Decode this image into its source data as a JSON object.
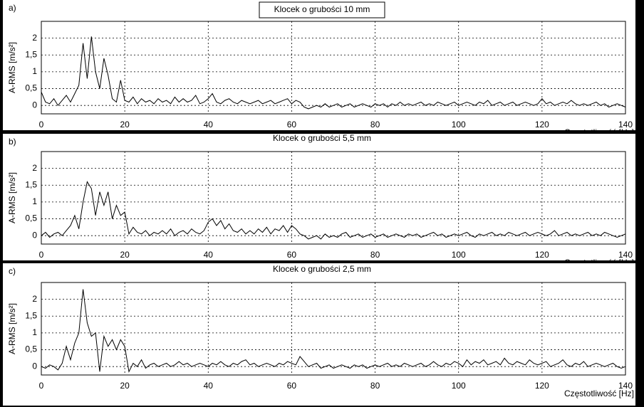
{
  "chart_data": [
    {
      "type": "line",
      "label": "a)",
      "title": "Klocek o grubości 10 mm",
      "xlabel": "Częstotliwość [Hz]",
      "ylabel": "A-RMS [m/s²]",
      "xlim": [
        0,
        140
      ],
      "ylim": [
        -0.25,
        2.5
      ],
      "xticks": [
        0,
        20,
        40,
        60,
        80,
        100,
        120,
        140
      ],
      "yticks": [
        0,
        {
          "value": 0.5,
          "label": "0,5"
        },
        1,
        {
          "value": 1.5,
          "label": "1,5"
        },
        2
      ],
      "grid": true,
      "color": "#000000",
      "x": [
        0,
        1,
        2,
        3,
        4,
        5,
        6,
        7,
        8,
        9,
        10,
        11,
        12,
        13,
        14,
        15,
        16,
        17,
        18,
        19,
        20,
        21,
        22,
        23,
        24,
        25,
        26,
        27,
        28,
        29,
        30,
        31,
        32,
        33,
        34,
        35,
        36,
        37,
        38,
        39,
        40,
        41,
        42,
        43,
        44,
        45,
        46,
        47,
        48,
        49,
        50,
        51,
        52,
        53,
        54,
        55,
        56,
        57,
        58,
        59,
        60,
        61,
        62,
        63,
        64,
        65,
        66,
        67,
        68,
        69,
        70,
        71,
        72,
        73,
        74,
        75,
        76,
        77,
        78,
        79,
        80,
        81,
        82,
        83,
        84,
        85,
        86,
        87,
        88,
        89,
        90,
        91,
        92,
        93,
        94,
        95,
        96,
        97,
        98,
        99,
        100,
        101,
        102,
        103,
        104,
        105,
        106,
        107,
        108,
        109,
        110,
        111,
        112,
        113,
        114,
        115,
        116,
        117,
        118,
        119,
        120,
        121,
        122,
        123,
        124,
        125,
        126,
        127,
        128,
        129,
        130,
        131,
        132,
        133,
        134,
        135,
        136,
        137,
        138,
        139,
        140
      ],
      "values": [
        0.4,
        0.1,
        0.05,
        0.2,
        0.0,
        0.15,
        0.3,
        0.1,
        0.35,
        0.6,
        1.85,
        0.8,
        2.05,
        1.0,
        0.5,
        1.4,
        0.9,
        0.2,
        0.1,
        0.75,
        0.15,
        0.1,
        0.25,
        0.05,
        0.2,
        0.1,
        0.15,
        0.05,
        0.2,
        0.1,
        0.15,
        0.05,
        0.25,
        0.1,
        0.2,
        0.1,
        0.15,
        0.3,
        0.05,
        0.1,
        0.2,
        0.35,
        0.1,
        0.05,
        0.15,
        0.2,
        0.1,
        0.05,
        0.15,
        0.1,
        0.05,
        0.1,
        0.15,
        0.05,
        0.1,
        0.15,
        0.05,
        0.1,
        0.15,
        0.2,
        0.05,
        0.15,
        0.1,
        -0.05,
        -0.1,
        -0.05,
        0.0,
        -0.05,
        0.05,
        -0.05,
        0.0,
        0.05,
        -0.05,
        0.0,
        0.05,
        -0.05,
        0.0,
        0.05,
        0.0,
        -0.05,
        0.05,
        0.0,
        0.05,
        -0.05,
        0.05,
        0.0,
        0.1,
        0.0,
        0.05,
        0.0,
        0.05,
        0.1,
        0.0,
        0.05,
        0.0,
        0.1,
        0.05,
        0.0,
        0.05,
        0.1,
        0.0,
        0.05,
        0.1,
        0.05,
        0.0,
        0.1,
        0.05,
        0.15,
        0.0,
        0.05,
        0.1,
        0.0,
        0.05,
        0.1,
        0.0,
        0.05,
        0.1,
        0.05,
        0.0,
        0.05,
        0.2,
        0.05,
        0.1,
        0.0,
        0.05,
        0.1,
        0.05,
        0.15,
        0.05,
        0.0,
        0.05,
        0.0,
        0.05,
        0.1,
        0.0,
        0.05,
        -0.05,
        0.0,
        0.05,
        0.0,
        -0.05
      ]
    },
    {
      "type": "line",
      "label": "b)",
      "title": "Klocek o grubości 5,5 mm",
      "xlabel": "Częstotliwość [Hz]",
      "ylabel": "A-RMS [m/s²]",
      "xlim": [
        0,
        140
      ],
      "ylim": [
        -0.25,
        2.5
      ],
      "xticks": [
        0,
        20,
        40,
        60,
        80,
        100,
        120,
        140
      ],
      "yticks": [
        0,
        {
          "value": 0.5,
          "label": "0,5"
        },
        1,
        {
          "value": 1.5,
          "label": "1,5"
        },
        2
      ],
      "grid": true,
      "color": "#000000",
      "x": [
        0,
        1,
        2,
        3,
        4,
        5,
        6,
        7,
        8,
        9,
        10,
        11,
        12,
        13,
        14,
        15,
        16,
        17,
        18,
        19,
        20,
        21,
        22,
        23,
        24,
        25,
        26,
        27,
        28,
        29,
        30,
        31,
        32,
        33,
        34,
        35,
        36,
        37,
        38,
        39,
        40,
        41,
        42,
        43,
        44,
        45,
        46,
        47,
        48,
        49,
        50,
        51,
        52,
        53,
        54,
        55,
        56,
        57,
        58,
        59,
        60,
        61,
        62,
        63,
        64,
        65,
        66,
        67,
        68,
        69,
        70,
        71,
        72,
        73,
        74,
        75,
        76,
        77,
        78,
        79,
        80,
        81,
        82,
        83,
        84,
        85,
        86,
        87,
        88,
        89,
        90,
        91,
        92,
        93,
        94,
        95,
        96,
        97,
        98,
        99,
        100,
        101,
        102,
        103,
        104,
        105,
        106,
        107,
        108,
        109,
        110,
        111,
        112,
        113,
        114,
        115,
        116,
        117,
        118,
        119,
        120,
        121,
        122,
        123,
        124,
        125,
        126,
        127,
        128,
        129,
        130,
        131,
        132,
        133,
        134,
        135,
        136,
        137,
        138,
        139,
        140
      ],
      "values": [
        0.0,
        0.1,
        -0.05,
        0.05,
        0.1,
        0.0,
        0.15,
        0.3,
        0.6,
        0.2,
        1.0,
        1.6,
        1.4,
        0.6,
        1.3,
        0.9,
        1.3,
        0.5,
        0.9,
        0.6,
        0.7,
        0.05,
        0.25,
        0.1,
        0.05,
        0.15,
        0.0,
        0.1,
        0.05,
        0.15,
        0.05,
        0.2,
        0.0,
        0.1,
        0.15,
        0.05,
        0.2,
        0.1,
        0.05,
        0.15,
        0.4,
        0.5,
        0.3,
        0.45,
        0.2,
        0.35,
        0.15,
        0.1,
        0.2,
        0.05,
        0.15,
        0.05,
        0.2,
        0.1,
        0.25,
        0.05,
        0.2,
        0.15,
        0.3,
        0.1,
        0.3,
        0.2,
        0.05,
        0.0,
        -0.1,
        -0.05,
        0.0,
        -0.1,
        0.05,
        -0.05,
        0.0,
        -0.05,
        0.05,
        0.1,
        -0.05,
        0.0,
        0.05,
        -0.05,
        0.0,
        0.05,
        -0.05,
        0.0,
        0.05,
        -0.05,
        0.0,
        0.05,
        0.0,
        -0.05,
        0.05,
        0.0,
        0.05,
        -0.05,
        0.0,
        0.05,
        0.1,
        0.0,
        0.05,
        -0.05,
        0.0,
        0.05,
        0.0,
        0.05,
        0.1,
        0.0,
        -0.05,
        0.05,
        0.0,
        0.05,
        0.1,
        0.0,
        0.05,
        0.0,
        0.1,
        0.05,
        0.0,
        0.05,
        0.1,
        0.0,
        0.05,
        0.1,
        0.05,
        0.0,
        0.05,
        0.15,
        0.0,
        0.05,
        0.1,
        0.0,
        0.05,
        0.0,
        0.05,
        0.1,
        0.0,
        0.05,
        0.0,
        0.1,
        0.05,
        0.0,
        -0.05,
        0.0,
        0.05
      ]
    },
    {
      "type": "line",
      "label": "c)",
      "title": "Klocek o grubości 2,5 mm",
      "xlabel": "Częstotliwość [Hz]",
      "ylabel": "A-RMS [m/s²]",
      "xlim": [
        0,
        140
      ],
      "ylim": [
        -0.25,
        2.5
      ],
      "xticks": [
        0,
        20,
        40,
        60,
        80,
        100,
        120,
        140
      ],
      "yticks": [
        0,
        {
          "value": 0.5,
          "label": "0,5"
        },
        1,
        {
          "value": 1.5,
          "label": "1,5"
        },
        2
      ],
      "grid": true,
      "color": "#000000",
      "x": [
        0,
        1,
        2,
        3,
        4,
        5,
        6,
        7,
        8,
        9,
        10,
        11,
        12,
        13,
        14,
        15,
        16,
        17,
        18,
        19,
        20,
        21,
        22,
        23,
        24,
        25,
        26,
        27,
        28,
        29,
        30,
        31,
        32,
        33,
        34,
        35,
        36,
        37,
        38,
        39,
        40,
        41,
        42,
        43,
        44,
        45,
        46,
        47,
        48,
        49,
        50,
        51,
        52,
        53,
        54,
        55,
        56,
        57,
        58,
        59,
        60,
        61,
        62,
        63,
        64,
        65,
        66,
        67,
        68,
        69,
        70,
        71,
        72,
        73,
        74,
        75,
        76,
        77,
        78,
        79,
        80,
        81,
        82,
        83,
        84,
        85,
        86,
        87,
        88,
        89,
        90,
        91,
        92,
        93,
        94,
        95,
        96,
        97,
        98,
        99,
        100,
        101,
        102,
        103,
        104,
        105,
        106,
        107,
        108,
        109,
        110,
        111,
        112,
        113,
        114,
        115,
        116,
        117,
        118,
        119,
        120,
        121,
        122,
        123,
        124,
        125,
        126,
        127,
        128,
        129,
        130,
        131,
        132,
        133,
        134,
        135,
        136,
        137,
        138,
        139,
        140
      ],
      "values": [
        0.0,
        -0.05,
        0.05,
        0.0,
        -0.1,
        0.1,
        0.6,
        0.2,
        0.7,
        1.0,
        2.3,
        1.3,
        0.9,
        1.0,
        -0.15,
        0.9,
        0.6,
        0.8,
        0.5,
        0.8,
        0.6,
        -0.15,
        0.1,
        0.0,
        0.2,
        -0.05,
        0.05,
        0.1,
        0.0,
        0.05,
        0.1,
        0.0,
        0.05,
        0.15,
        0.05,
        0.1,
        0.0,
        0.05,
        0.1,
        0.05,
        0.0,
        0.1,
        0.05,
        0.15,
        0.05,
        0.0,
        0.1,
        0.05,
        0.15,
        0.2,
        0.05,
        0.1,
        0.0,
        0.05,
        0.1,
        0.05,
        0.0,
        0.1,
        0.05,
        0.15,
        0.1,
        0.05,
        0.3,
        0.15,
        0.0,
        0.05,
        0.1,
        -0.05,
        0.0,
        0.05,
        -0.05,
        0.0,
        0.05,
        0.0,
        -0.05,
        0.05,
        0.0,
        0.05,
        -0.05,
        0.0,
        0.05,
        0.0,
        0.05,
        0.1,
        0.0,
        0.05,
        0.0,
        0.1,
        0.05,
        0.0,
        0.05,
        0.1,
        0.0,
        0.05,
        0.15,
        0.05,
        0.0,
        0.1,
        0.05,
        0.15,
        0.1,
        0.0,
        0.2,
        0.05,
        0.15,
        0.1,
        0.2,
        0.05,
        0.1,
        0.15,
        0.05,
        0.25,
        0.1,
        0.05,
        0.15,
        0.1,
        0.05,
        0.2,
        0.1,
        0.05,
        0.1,
        0.15,
        0.0,
        0.05,
        0.1,
        0.2,
        0.05,
        0.0,
        0.1,
        0.05,
        0.15,
        0.0,
        0.05,
        0.1,
        0.05,
        0.0,
        0.05,
        0.1,
        0.0,
        -0.05,
        0.0
      ]
    }
  ]
}
